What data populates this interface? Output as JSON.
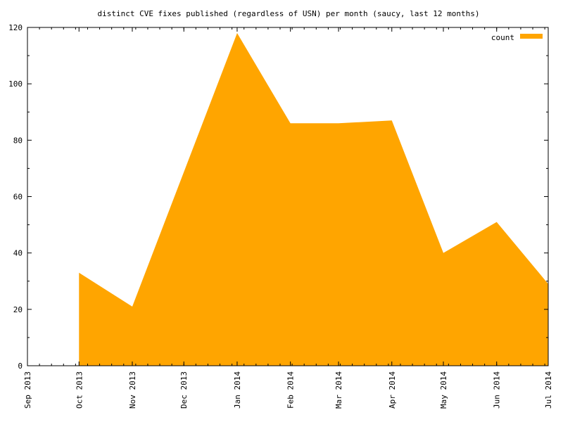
{
  "chart_data": {
    "type": "area",
    "title": "distinct CVE fixes published (regardless of USN) per month (saucy, last 12 months)",
    "xlabel": "",
    "ylabel": "",
    "x_ticks": [
      "Sep 2013",
      "Oct 2013",
      "Nov 2013",
      "Dec 2013",
      "Jan 2014",
      "Feb 2014",
      "Mar 2014",
      "Apr 2014",
      "May 2014",
      "Jun 2014",
      "Jul 2014"
    ],
    "xlim": [
      "Sep 2013",
      "Jul 2014"
    ],
    "ylim": [
      0,
      120
    ],
    "y_ticks": [
      0,
      20,
      40,
      60,
      80,
      100,
      120
    ],
    "grid": false,
    "legend_position": "top-right",
    "series": [
      {
        "name": "count",
        "color": "#ffa500",
        "points": [
          {
            "x": "Oct 2013",
            "y": 33
          },
          {
            "x": "Nov 2013",
            "y": 21
          },
          {
            "x": "Jan 2014",
            "y": 118
          },
          {
            "x": "Feb 2014",
            "y": 86
          },
          {
            "x": "Mar 2014",
            "y": 86
          },
          {
            "x": "Apr 2014",
            "y": 87
          },
          {
            "x": "May 2014",
            "y": 40
          },
          {
            "x": "Jun 2014",
            "y": 51
          },
          {
            "x": "Jul 2014",
            "y": 29
          }
        ]
      }
    ]
  }
}
